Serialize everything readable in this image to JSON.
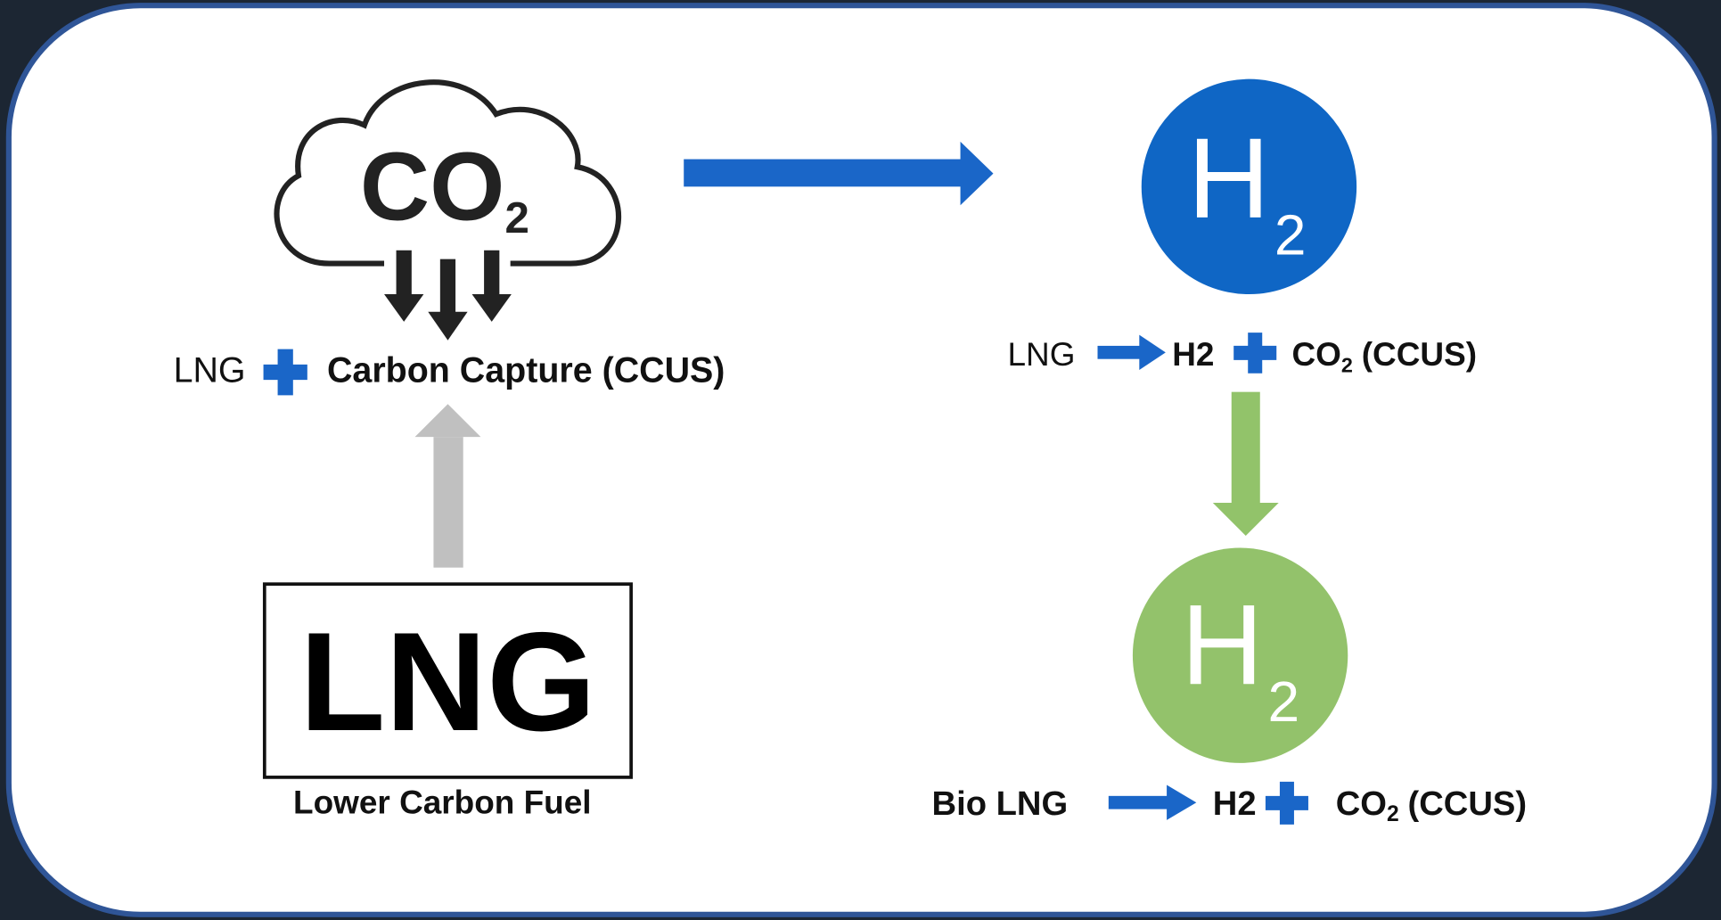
{
  "co2_capture": {
    "icon": {
      "main": "CO",
      "sub": "2"
    },
    "label": {
      "lead": "LNG",
      "text": "Carbon Capture (CCUS)"
    }
  },
  "hydrogen_blue": {
    "icon": {
      "main": "H",
      "sub": "2"
    },
    "label": {
      "input": "LNG",
      "product": "H2",
      "co2": "CO",
      "co2_sub": "2",
      "suffix": "(CCUS)"
    }
  },
  "hydrogen_green": {
    "icon": {
      "main": "H",
      "sub": "2"
    },
    "label": {
      "input": "Bio LNG",
      "product": "H2",
      "co2": "CO",
      "co2_sub": "2",
      "suffix": "(CCUS)"
    }
  },
  "lng": {
    "label": "LNG",
    "caption": "Lower Carbon Fuel"
  }
}
